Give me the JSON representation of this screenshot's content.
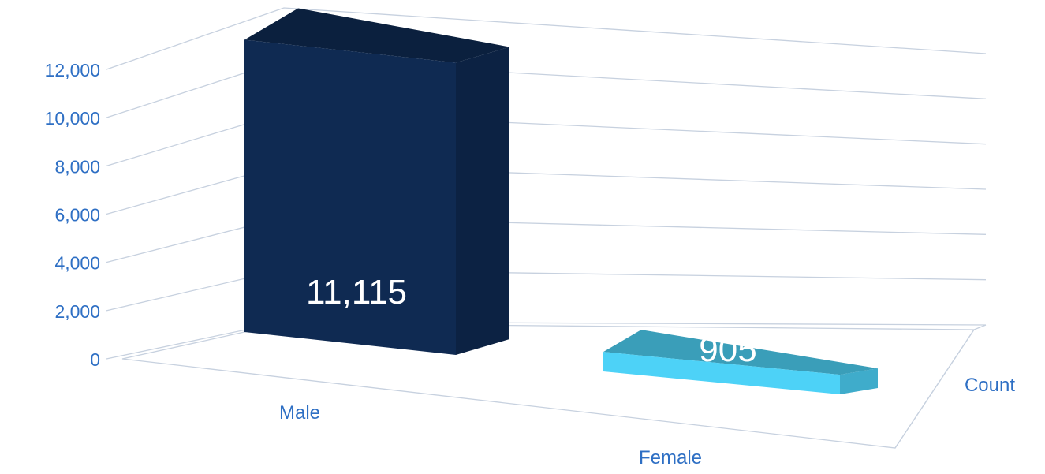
{
  "chart_data": {
    "type": "bar",
    "style": "3d-column",
    "categories": [
      "Male",
      "Female"
    ],
    "series": [
      {
        "name": "Count",
        "values": [
          11115,
          905
        ]
      }
    ],
    "data_labels": [
      "11,115",
      "905"
    ],
    "y_ticks": [
      "0",
      "2,000",
      "4,000",
      "6,000",
      "8,000",
      "10,000",
      "12,000"
    ],
    "series_axis_label": "Count",
    "ylim": [
      0,
      12000
    ],
    "grid": true,
    "legend": "none",
    "colors": {
      "male_bar": "#0f2a52",
      "female_bar": "#4dd2f7",
      "axis_text": "#2e6fc4",
      "gridline": "#c7d1df",
      "data_label": "#ffffff"
    }
  }
}
